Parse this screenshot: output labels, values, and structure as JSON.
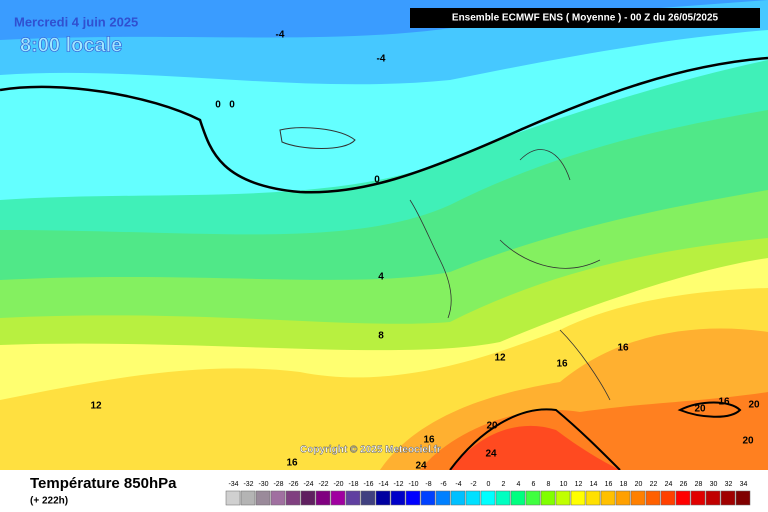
{
  "header": {
    "date": "Mercredi 4 juin 2025",
    "time": "8:00 locale",
    "model": "Ensemble ECMWF ENS  ( Moyenne )  -  00 Z du 26/05/2025"
  },
  "footer": {
    "variable": "Température 850hPa",
    "lead": "(+ 222h)",
    "copyright": "Copyright © 2025 Meteociel.fr"
  },
  "legend": {
    "labels": [
      -34,
      -32,
      -30,
      -28,
      -26,
      -24,
      -22,
      -20,
      -18,
      -16,
      -14,
      -12,
      -10,
      -8,
      -6,
      -4,
      -2,
      0,
      2,
      4,
      6,
      8,
      10,
      12,
      14,
      16,
      18,
      20,
      22,
      24,
      26,
      28,
      30,
      32,
      34
    ],
    "colors": [
      "#d0d0d0",
      "#b4b4b4",
      "#9a8a9a",
      "#a070a0",
      "#804080",
      "#602060",
      "#800080",
      "#a000a0",
      "#6040a0",
      "#404080",
      "#0000a0",
      "#0000c8",
      "#0000ff",
      "#0040ff",
      "#0080ff",
      "#00c0ff",
      "#00e0ff",
      "#00ffff",
      "#00ffc0",
      "#00ff80",
      "#40ff40",
      "#80ff00",
      "#c0ff00",
      "#ffff00",
      "#ffe000",
      "#ffc000",
      "#ffa000",
      "#ff8000",
      "#ff6000",
      "#ff4000",
      "#ff0000",
      "#e00000",
      "#c00000",
      "#a00000",
      "#800000"
    ]
  },
  "contour_labels": [
    "-4",
    "-4",
    "0",
    "0",
    "0",
    "4",
    "8",
    "12",
    "12",
    "16",
    "16",
    "16",
    "20",
    "20",
    "20",
    "16",
    "16",
    "24",
    "24",
    "20"
  ]
}
